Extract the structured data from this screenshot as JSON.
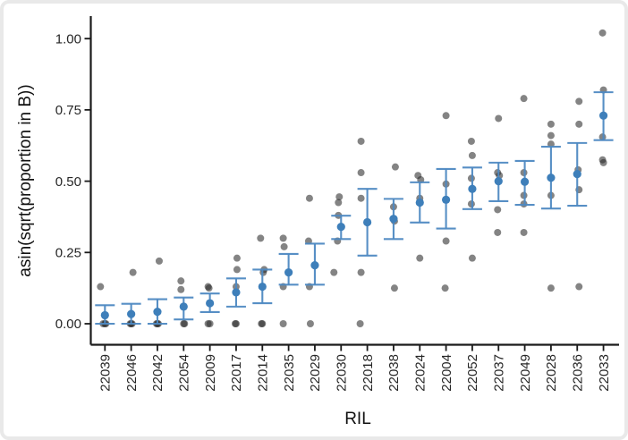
{
  "chart_data": {
    "type": "scatter",
    "variant": "jittered individual points with mean point and confidence-interval error bars per category",
    "title": "",
    "xlabel": "RIL",
    "ylabel": "asin(sqrt(proportion in B))",
    "ylim": [
      -0.05,
      1.07
    ],
    "yticks": [
      {
        "v": 0.0,
        "label": "0.00"
      },
      {
        "v": 0.25,
        "label": "0.25"
      },
      {
        "v": 0.5,
        "label": "0.50"
      },
      {
        "v": 0.75,
        "label": "0.75"
      },
      {
        "v": 1.0,
        "label": "1.00"
      }
    ],
    "grid": false,
    "legend": false,
    "x_tick_label_rotation_deg": -90,
    "colors": {
      "observation_point": "#2b2b2b",
      "observation_opacity": 0.58,
      "mean_point": "#3e7fba",
      "errorbar": "#4e89c2",
      "axis_line": "#1a1a1a"
    },
    "categories": [
      "22039",
      "22046",
      "22042",
      "22054",
      "22009",
      "22017",
      "22014",
      "22035",
      "22029",
      "22030",
      "22018",
      "22038",
      "22024",
      "22004",
      "22052",
      "22037",
      "22049",
      "22028",
      "22036",
      "22033"
    ],
    "groups": [
      {
        "ril": "22039",
        "observations": [
          0.13,
          0.0,
          0.0,
          0.0
        ],
        "jitter_dx": [
          -5,
          -2,
          0,
          1
        ],
        "mean": 0.03,
        "ci_low": 0.0,
        "ci_high": 0.065
      },
      {
        "ril": "22046",
        "observations": [
          0.18,
          0.0,
          0.0,
          0.0
        ],
        "jitter_dx": [
          2,
          -1,
          0,
          1
        ],
        "mean": 0.034,
        "ci_low": 0.0,
        "ci_high": 0.07
      },
      {
        "ril": "22042",
        "observations": [
          0.22,
          0.0,
          0.0,
          0.0
        ],
        "jitter_dx": [
          2,
          -1,
          1,
          0
        ],
        "mean": 0.042,
        "ci_low": 0.0,
        "ci_high": 0.086
      },
      {
        "ril": "22054",
        "observations": [
          0.15,
          0.12,
          0.0,
          0.0
        ],
        "jitter_dx": [
          -3,
          -3,
          0,
          1
        ],
        "mean": 0.06,
        "ci_low": 0.015,
        "ci_high": 0.092
      },
      {
        "ril": "22009",
        "observations": [
          0.13,
          0.125,
          0.0,
          0.0
        ],
        "jitter_dx": [
          -2,
          -1,
          -2,
          0
        ],
        "mean": 0.072,
        "ci_low": 0.041,
        "ci_high": 0.106
      },
      {
        "ril": "22017",
        "observations": [
          0.23,
          0.19,
          0.13,
          0.0,
          0.0
        ],
        "jitter_dx": [
          1,
          1,
          0,
          -1,
          0
        ],
        "mean": 0.11,
        "ci_low": 0.06,
        "ci_high": 0.159
      },
      {
        "ril": "22014",
        "observations": [
          0.3,
          0.19,
          0.18,
          0.0,
          0.0
        ],
        "jitter_dx": [
          -2,
          2,
          1,
          -1,
          0
        ],
        "mean": 0.13,
        "ci_low": 0.072,
        "ci_high": 0.19
      },
      {
        "ril": "22035",
        "observations": [
          0.3,
          0.27,
          0.13,
          0.0
        ],
        "jitter_dx": [
          -6,
          -5,
          -6,
          -6
        ],
        "mean": 0.18,
        "ci_low": 0.137,
        "ci_high": 0.245
      },
      {
        "ril": "22029",
        "observations": [
          0.44,
          0.29,
          0.13,
          0.0
        ],
        "jitter_dx": [
          -6,
          -7,
          -6,
          -5
        ],
        "mean": 0.205,
        "ci_low": 0.137,
        "ci_high": 0.281
      },
      {
        "ril": "22030",
        "observations": [
          0.445,
          0.425,
          0.38,
          0.29,
          0.18
        ],
        "jitter_dx": [
          -2,
          -3,
          -3,
          -4,
          -8
        ],
        "mean": 0.34,
        "ci_low": 0.297,
        "ci_high": 0.379
      },
      {
        "ril": "22018",
        "observations": [
          0.64,
          0.53,
          0.44,
          0.18,
          0.0
        ],
        "jitter_dx": [
          -7,
          -7,
          -7,
          -7,
          -8
        ],
        "mean": 0.356,
        "ci_low": 0.239,
        "ci_high": 0.473
      },
      {
        "ril": "22038",
        "observations": [
          0.55,
          0.41,
          0.36,
          0.125
        ],
        "jitter_dx": [
          2,
          0,
          1,
          1
        ],
        "mean": 0.368,
        "ci_low": 0.297,
        "ci_high": 0.438
      },
      {
        "ril": "22024",
        "observations": [
          0.52,
          0.505,
          0.44,
          0.23
        ],
        "jitter_dx": [
          -2,
          1,
          0,
          0
        ],
        "mean": 0.425,
        "ci_low": 0.355,
        "ci_high": 0.496
      },
      {
        "ril": "22004",
        "observations": [
          0.73,
          0.49,
          0.29,
          0.125
        ],
        "jitter_dx": [
          0,
          0,
          0,
          -1
        ],
        "mean": 0.435,
        "ci_low": 0.334,
        "ci_high": 0.543
      },
      {
        "ril": "22052",
        "observations": [
          0.64,
          0.59,
          0.51,
          0.42,
          0.23
        ],
        "jitter_dx": [
          -1,
          0,
          -1,
          -1,
          0
        ],
        "mean": 0.473,
        "ci_low": 0.402,
        "ci_high": 0.548
      },
      {
        "ril": "22037",
        "observations": [
          0.72,
          0.53,
          0.52,
          0.4,
          0.32
        ],
        "jitter_dx": [
          0,
          -1,
          1,
          -1,
          -1
        ],
        "mean": 0.5,
        "ci_low": 0.43,
        "ci_high": 0.565
      },
      {
        "ril": "22049",
        "observations": [
          0.79,
          0.53,
          0.45,
          0.42,
          0.32
        ],
        "jitter_dx": [
          -1,
          -1,
          -1,
          -1,
          -1
        ],
        "mean": 0.498,
        "ci_low": 0.417,
        "ci_high": 0.571
      },
      {
        "ril": "22028",
        "observations": [
          0.7,
          0.66,
          0.63,
          0.45,
          0.125
        ],
        "jitter_dx": [
          0,
          0,
          0,
          0,
          0
        ],
        "mean": 0.512,
        "ci_low": 0.404,
        "ci_high": 0.621
      },
      {
        "ril": "22036",
        "observations": [
          0.78,
          0.7,
          0.54,
          0.47,
          0.13
        ],
        "jitter_dx": [
          2,
          2,
          1,
          2,
          2
        ],
        "mean": 0.525,
        "ci_low": 0.414,
        "ci_high": 0.634
      },
      {
        "ril": "22033",
        "observations": [
          1.02,
          0.82,
          0.655,
          0.575,
          0.565
        ],
        "jitter_dx": [
          -1,
          0,
          -1,
          -1,
          0
        ],
        "mean": 0.73,
        "ci_low": 0.644,
        "ci_high": 0.812
      }
    ]
  }
}
